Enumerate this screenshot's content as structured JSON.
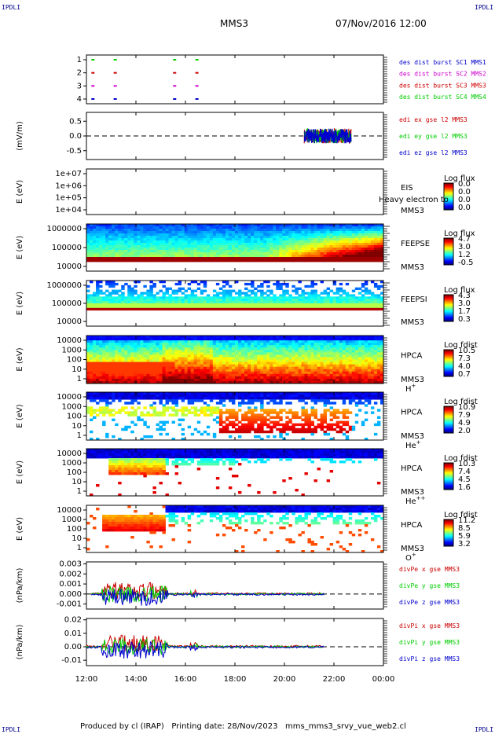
{
  "header": {
    "corner_tl": "IPDLI",
    "corner_tr": "IPDLI",
    "corner_bl": "IPDLI",
    "corner_br": "IPDLI",
    "mission": "MMS3",
    "datetime": "07/Nov/2016 12:00"
  },
  "footer": {
    "text": "Produced by cl (IRAP)   Printing date: 28/Nov/2023   mms_mms3_srvy_vue_web2.cl"
  },
  "colors": {
    "c1": "#0000cc",
    "c2": "#cc00cc",
    "c3": "#cc0000",
    "c4": "#00cc00"
  },
  "chart_data": [
    {
      "type": "scatter",
      "id": "burst",
      "ylabel": "",
      "yticks": [
        "1",
        "2",
        "3",
        "4"
      ],
      "legend": [
        {
          "text": "des dist burst SC1 MMS1",
          "color": "#0000cc"
        },
        {
          "text": "des dist burst SC2 MMS2",
          "color": "#cc00cc"
        },
        {
          "text": "des dist burst SC3 MMS3",
          "color": "#cc0000"
        },
        {
          "text": "des dist burst SC4 MMS4",
          "color": "#00cc00"
        }
      ],
      "series": [
        {
          "level": 4,
          "x": [
            12.2,
            13.1,
            15.5,
            16.4
          ]
        },
        {
          "level": 3,
          "x": [
            12.2,
            13.1,
            15.5,
            16.4
          ]
        },
        {
          "level": 2,
          "x": [
            12.2,
            13.1,
            15.5,
            16.4
          ]
        },
        {
          "level": 1,
          "x": [
            12.2,
            13.1,
            15.5,
            16.4
          ]
        }
      ]
    },
    {
      "type": "line",
      "id": "edi",
      "ylabel": "(mV/m)",
      "yticks": [
        "0.5",
        "0.0",
        "-0.5"
      ],
      "ylim": [
        -0.8,
        0.8
      ],
      "legend": [
        {
          "text": "edi ex gse l2 MMS3",
          "color": "#cc0000"
        },
        {
          "text": "edi ey gse l2 MMS3",
          "color": "#00cc00"
        },
        {
          "text": "edi ez gse l2 MMS3",
          "color": "#0000cc"
        }
      ],
      "active_range": [
        20.8,
        22.7
      ]
    },
    {
      "type": "heatmap",
      "id": "eis",
      "ylabel": "E (eV)",
      "yticks": [
        "1e+07",
        "1e+06",
        "1e+05",
        "1e+04"
      ],
      "instrument": [
        "EIS",
        "MMS3"
      ],
      "overlay_text": "Heavy electron to",
      "cbar_title": "Log flux",
      "cbar_ticks": [
        "0.0",
        "0.0",
        "0.0",
        "0.0"
      ]
    },
    {
      "type": "heatmap",
      "id": "feepse",
      "ylabel": "E (eV)",
      "yticks": [
        "1000000",
        "100000",
        "10000"
      ],
      "instrument": [
        "FEEPSE",
        "MMS3"
      ],
      "cbar_title": "Log flux",
      "cbar_ticks": [
        "4.7",
        "3.0",
        "1.2",
        "-0.5"
      ]
    },
    {
      "type": "heatmap",
      "id": "feepsi",
      "ylabel": "E (eV)",
      "yticks": [
        "1000000",
        "100000",
        "10000"
      ],
      "instrument": [
        "FEEPSI",
        "MMS3"
      ],
      "cbar_title": "Log flux",
      "cbar_ticks": [
        "4.3",
        "3.0",
        "1.7",
        "0.3"
      ]
    },
    {
      "type": "heatmap",
      "id": "hpca_h",
      "ylabel": "E (eV)",
      "yticks": [
        "10000",
        "1000",
        "100",
        "10",
        "1"
      ],
      "instrument": [
        "HPCA",
        "MMS3"
      ],
      "species": "H",
      "species_sup": "+",
      "cbar_title": "Log fdist",
      "cbar_ticks": [
        "10.5",
        "7.3",
        "4.0",
        "0.7"
      ]
    },
    {
      "type": "heatmap",
      "id": "hpca_he",
      "ylabel": "E (eV)",
      "yticks": [
        "10000",
        "1000",
        "100",
        "10",
        "1"
      ],
      "instrument": [
        "HPCA",
        "MMS3"
      ],
      "species": "He",
      "species_sup": "+",
      "cbar_title": "Log fdist",
      "cbar_ticks": [
        "10.9",
        "7.9",
        "4.9",
        "2.0"
      ]
    },
    {
      "type": "heatmap",
      "id": "hpca_hepp",
      "ylabel": "E (eV)",
      "yticks": [
        "10000",
        "1000",
        "100",
        "10",
        "1"
      ],
      "instrument": [
        "HPCA",
        "MMS3"
      ],
      "species": "He",
      "species_sup": "++",
      "cbar_title": "Log fdist",
      "cbar_ticks": [
        "10.3",
        "7.4",
        "4.5",
        "1.6"
      ]
    },
    {
      "type": "heatmap",
      "id": "hpca_o",
      "ylabel": "E (eV)",
      "yticks": [
        "10000",
        "1000",
        "100",
        "10",
        "1"
      ],
      "instrument": [
        "HPCA",
        "MMS3"
      ],
      "species": "O",
      "species_sup": "+",
      "cbar_title": "Log fdist",
      "cbar_ticks": [
        "11.2",
        "8.5",
        "5.9",
        "3.2"
      ]
    },
    {
      "type": "line",
      "id": "divpe",
      "ylabel": "(nPa/km)",
      "yticks": [
        "0.003",
        "0.002",
        "0.001",
        "0.000",
        "-0.001"
      ],
      "ylim": [
        -0.0015,
        0.0032
      ],
      "legend": [
        {
          "text": "divPe x gse MMS3",
          "color": "#cc0000"
        },
        {
          "text": "divPe y gse MMS3",
          "color": "#00cc00"
        },
        {
          "text": "divPe z gse MMS3",
          "color": "#0000cc"
        }
      ],
      "active_range": [
        12.2,
        21.6
      ]
    },
    {
      "type": "line",
      "id": "divpi",
      "ylabel": "(nPa/km)",
      "yticks": [
        "0.02",
        "0.01",
        "0.00",
        "-0.01"
      ],
      "ylim": [
        -0.014,
        0.021
      ],
      "legend": [
        {
          "text": "divPi x gse MMS3",
          "color": "#cc0000"
        },
        {
          "text": "divPi y gse MMS3",
          "color": "#00cc00"
        },
        {
          "text": "divPi z gse MMS3",
          "color": "#0000cc"
        }
      ],
      "active_range": [
        12.0,
        21.6
      ]
    }
  ],
  "xaxis": {
    "labels": [
      "12:00",
      "14:00",
      "16:00",
      "18:00",
      "20:00",
      "22:00",
      "00:00"
    ],
    "range_hours": [
      12,
      24
    ]
  }
}
